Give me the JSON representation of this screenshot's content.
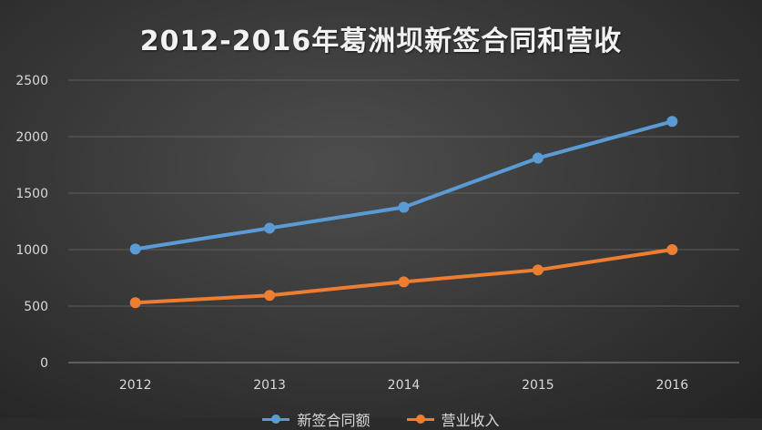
{
  "chart_data": {
    "type": "line",
    "title": "2012-2016年葛洲坝新签合同和营收",
    "categories": [
      "2012",
      "2013",
      "2014",
      "2015",
      "2016"
    ],
    "ylim": [
      0,
      2500
    ],
    "yticks": [
      0,
      500,
      1000,
      1500,
      2000,
      2500
    ],
    "grid": true,
    "legend_position": "bottom",
    "series": [
      {
        "name": "新签合同额",
        "color": "#5b9bd5",
        "values": [
          1005,
          1190,
          1375,
          1810,
          2135
        ]
      },
      {
        "name": "营业收入",
        "color": "#ed7d31",
        "values": [
          530,
          595,
          715,
          820,
          1000
        ]
      }
    ]
  }
}
